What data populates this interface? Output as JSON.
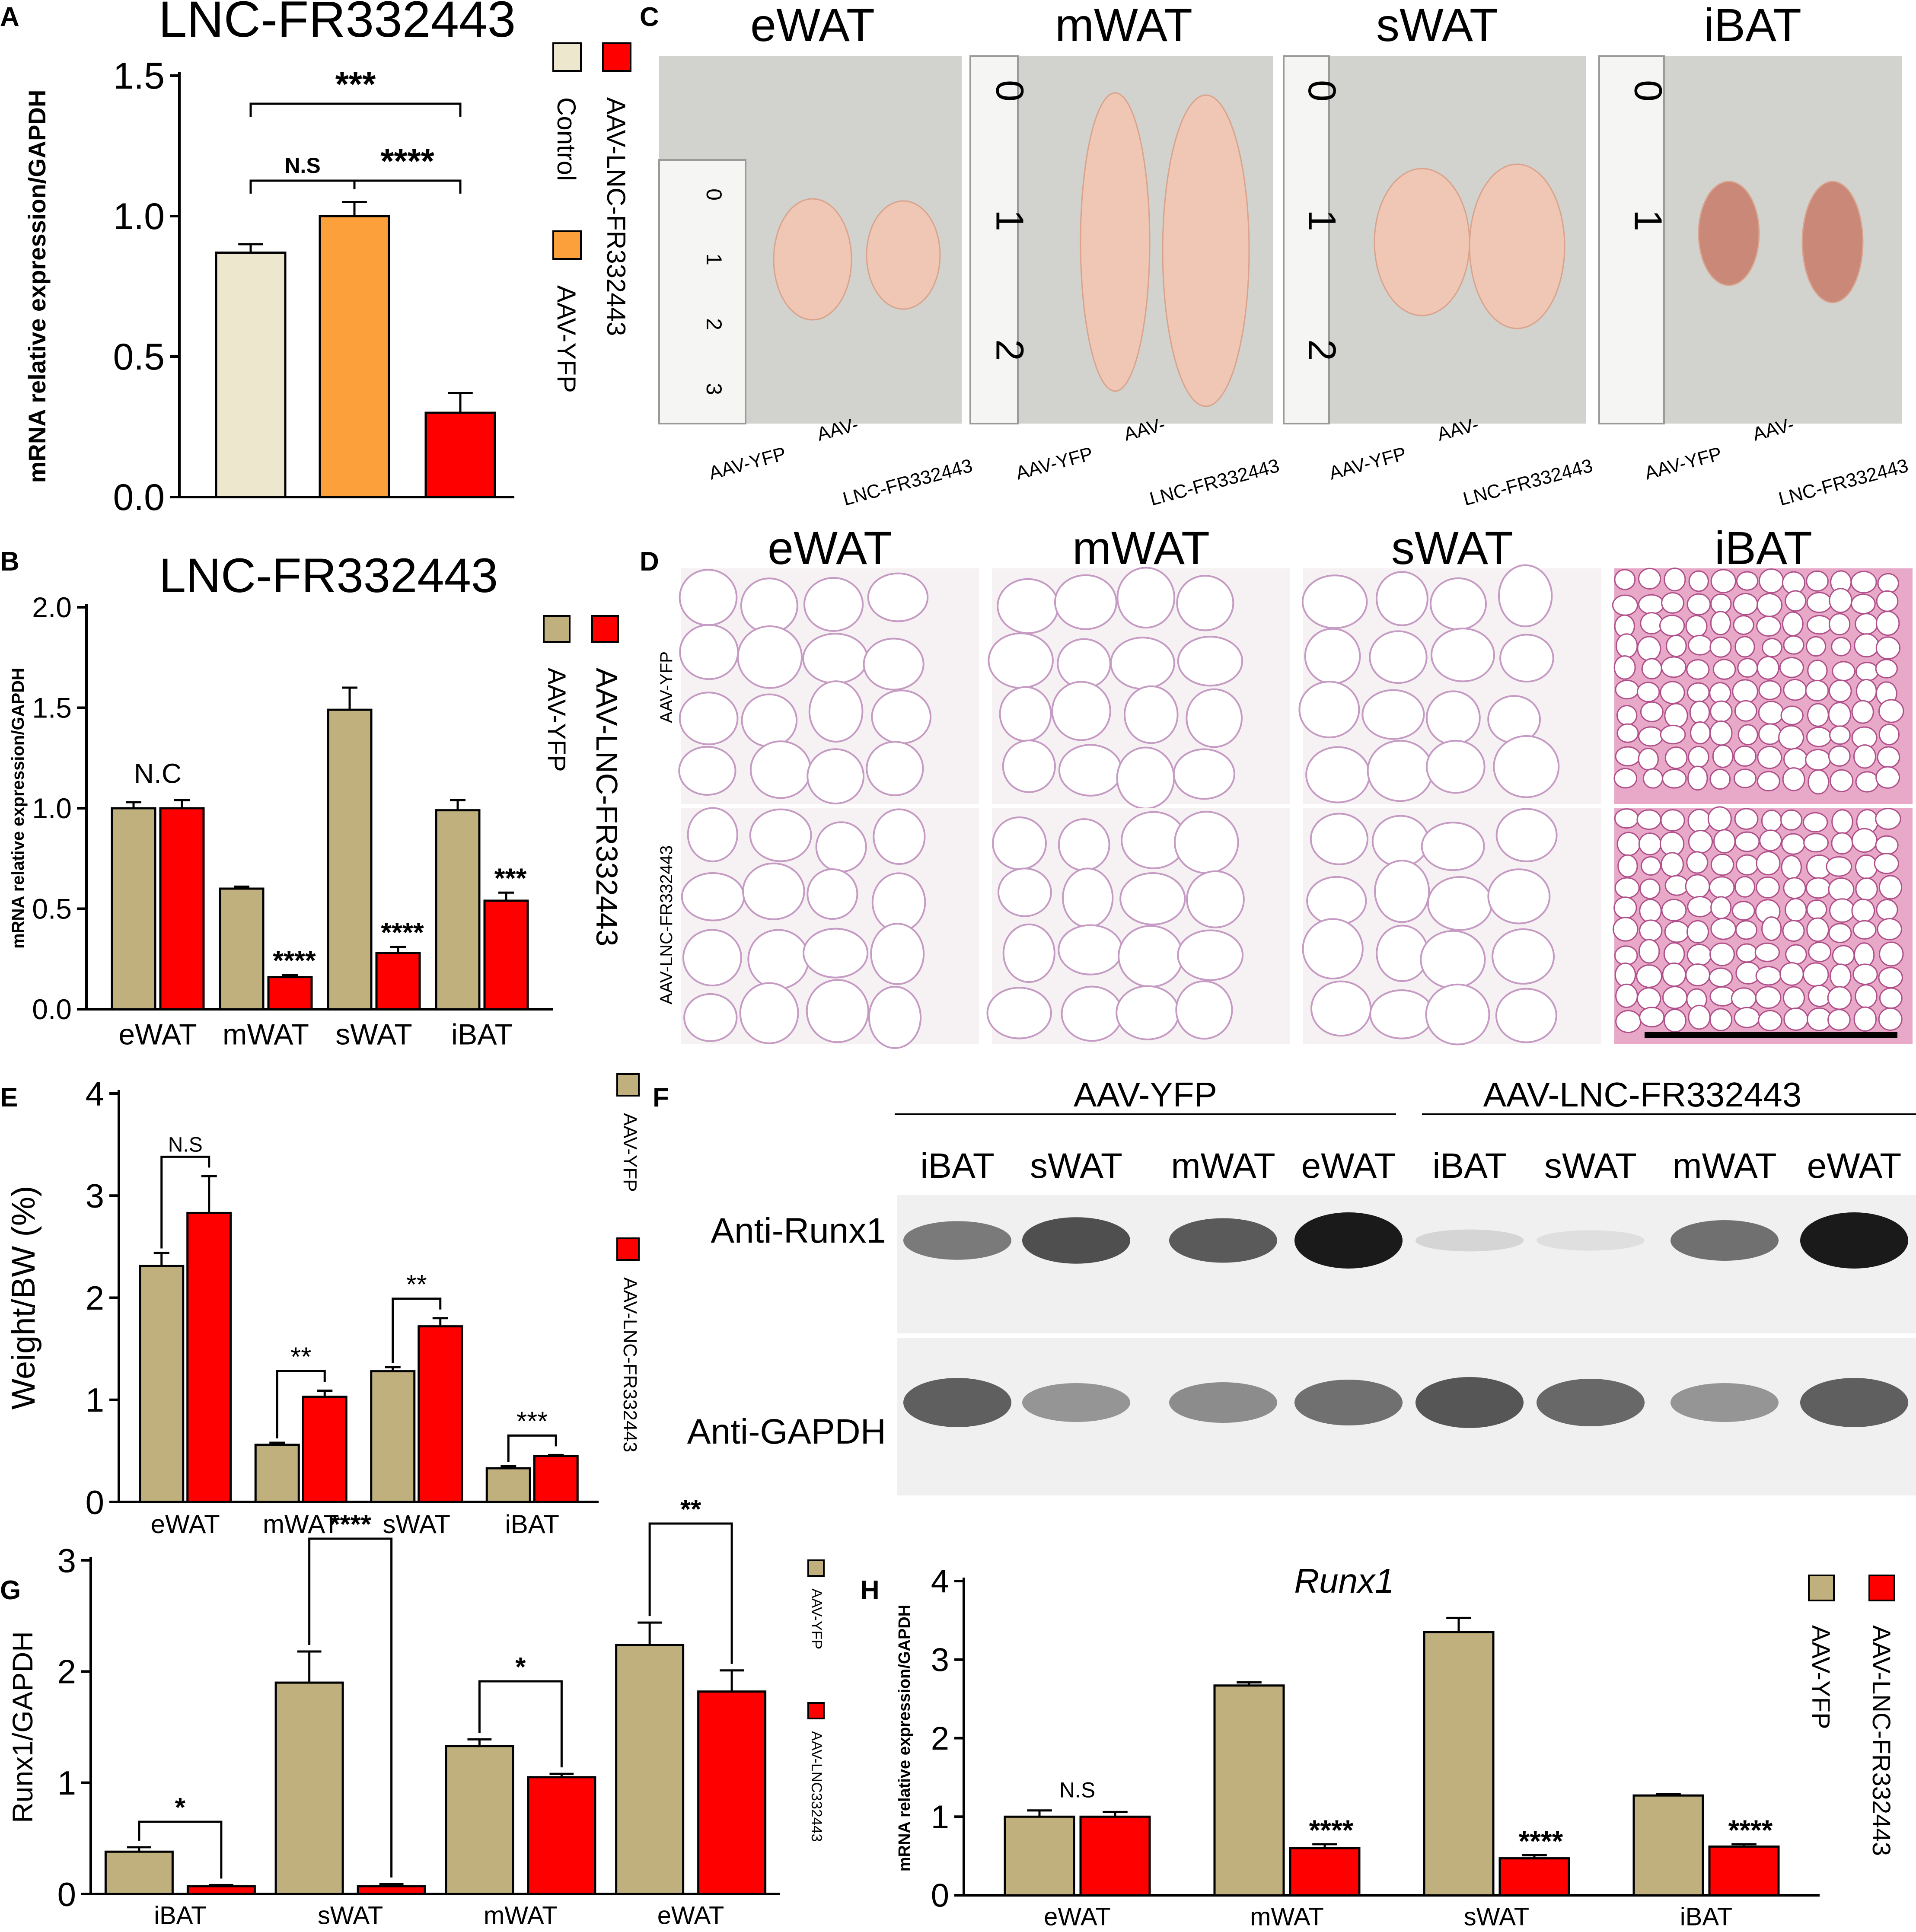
{
  "colors": {
    "control": "#EDE7CE",
    "orange": "#FBA03A",
    "red": "#FF0000",
    "khaki": "#BFB07E",
    "photo_bg": "#D2D2CE",
    "tissue": "#F0C7B4",
    "he_bg": "#F6F2F4",
    "he_line": "#C59AC3",
    "blot_bg": "#F0F0F0",
    "band": "#1A1A1A"
  },
  "panels": {
    "A": "A",
    "B": "B",
    "C": "C",
    "D": "D",
    "E": "E",
    "F": "F",
    "G": "G",
    "H": "H"
  },
  "chart_data": [
    {
      "id": "A",
      "type": "bar",
      "title": "LNC-FR332443",
      "ylabel": "mRNA relative expression/GAPDH",
      "ylim": [
        0,
        1.5
      ],
      "yticks": [
        "0.0",
        "0.5",
        "1.0",
        "1.5"
      ],
      "series": [
        {
          "name": "Control",
          "color": "#EDE7CE",
          "values": [
            0.87
          ],
          "errors": [
            0.03
          ]
        },
        {
          "name": "AAV-YFP",
          "color": "#FBA03A",
          "values": [
            1.0
          ],
          "errors": [
            0.05
          ]
        },
        {
          "name": "AAV-LNC-FR332443",
          "color": "#FF0000",
          "values": [
            0.3
          ],
          "errors": [
            0.07
          ]
        }
      ],
      "annotations": [
        {
          "text": "N.S",
          "from": 0,
          "to": 1
        },
        {
          "text": "****",
          "from": 1,
          "to": 2
        },
        {
          "text": "***",
          "from": 0,
          "to": 2
        }
      ]
    },
    {
      "id": "B",
      "type": "bar",
      "title": "LNC-FR332443",
      "ylabel": "mRNA relative expression/GAPDH",
      "ylim": [
        0,
        2.0
      ],
      "yticks": [
        "0.0",
        "0.5",
        "1.0",
        "1.5",
        "2.0"
      ],
      "categories": [
        "eWAT",
        "mWAT",
        "sWAT",
        "iBAT"
      ],
      "series": [
        {
          "name": "AAV-YFP",
          "color": "#BFB07E",
          "values": [
            1.0,
            0.6,
            1.49,
            0.99
          ],
          "errors": [
            0.03,
            0.01,
            0.11,
            0.05
          ]
        },
        {
          "name": "AAV-LNC-FR332443",
          "color": "#FF0000",
          "values": [
            1.0,
            0.16,
            0.28,
            0.54
          ],
          "errors": [
            0.04,
            0.01,
            0.03,
            0.04
          ]
        }
      ],
      "annotations": [
        "N.C",
        "****",
        "****",
        "***"
      ]
    },
    {
      "id": "E",
      "type": "bar",
      "ylabel": "Weight/BW (%)",
      "ylim": [
        0,
        4
      ],
      "yticks": [
        "0",
        "1",
        "2",
        "3",
        "4"
      ],
      "categories": [
        "eWAT",
        "mWAT",
        "sWAT",
        "iBAT"
      ],
      "series": [
        {
          "name": "AAV-YFP",
          "color": "#BFB07E",
          "values": [
            2.31,
            0.56,
            1.28,
            0.33
          ],
          "errors": [
            0.13,
            0.02,
            0.04,
            0.02
          ]
        },
        {
          "name": "AAV-LNC-FR332443",
          "color": "#FF0000",
          "values": [
            2.83,
            1.03,
            1.72,
            0.45
          ],
          "errors": [
            0.36,
            0.06,
            0.08,
            0.01
          ]
        }
      ],
      "annotations": [
        "N.S",
        "**",
        "**",
        "***"
      ]
    },
    {
      "id": "G",
      "type": "bar",
      "ylabel": "Runx1/GAPDH",
      "ylim": [
        0,
        3
      ],
      "yticks": [
        "0",
        "1",
        "2",
        "3"
      ],
      "categories": [
        "iBAT",
        "sWAT",
        "mWAT",
        "eWAT"
      ],
      "series": [
        {
          "name": "AAV-YFP",
          "color": "#BFB07E",
          "values": [
            0.38,
            1.9,
            1.33,
            2.24
          ],
          "errors": [
            0.04,
            0.28,
            0.06,
            0.2
          ]
        },
        {
          "name": "AAV-LNC332443",
          "color": "#FF0000",
          "values": [
            0.07,
            0.07,
            1.05,
            1.82
          ],
          "errors": [
            0.01,
            0.02,
            0.03,
            0.19
          ]
        }
      ],
      "annotations": [
        "*",
        "****",
        "*",
        "**"
      ]
    },
    {
      "id": "H",
      "type": "bar",
      "title": "Runx1",
      "ylabel": "mRNA relative expression/GAPDH",
      "ylim": [
        0,
        4
      ],
      "yticks": [
        "0",
        "1",
        "2",
        "3",
        "4"
      ],
      "categories": [
        "eWAT",
        "mWAT",
        "sWAT",
        "iBAT"
      ],
      "series": [
        {
          "name": "AAV-YFP",
          "color": "#BFB07E",
          "values": [
            1.0,
            2.67,
            3.35,
            1.27
          ],
          "errors": [
            0.08,
            0.04,
            0.18,
            0.02
          ]
        },
        {
          "name": "AAV-LNC-FR332443",
          "color": "#FF0000",
          "values": [
            1.0,
            0.6,
            0.47,
            0.62
          ],
          "errors": [
            0.06,
            0.05,
            0.04,
            0.03
          ]
        }
      ],
      "annotations": [
        "N.S",
        "****",
        "****",
        "****"
      ]
    }
  ],
  "photos": {
    "tissues": [
      "eWAT",
      "mWAT",
      "sWAT",
      "iBAT"
    ],
    "label_yfp": "AAV-YFP",
    "label_lnc_1": "AAV-",
    "label_lnc_2": "LNC-FR332443",
    "ruler_marks": [
      "0",
      "1",
      "2",
      "3"
    ]
  },
  "histology": {
    "tissues": [
      "eWAT",
      "mWAT",
      "sWAT",
      "iBAT"
    ],
    "rows": [
      "AAV-YFP",
      "AAV-LNC-FR332443"
    ]
  },
  "western": {
    "group_yfp": "AAV-YFP",
    "group_lnc": "AAV-LNC-FR332443",
    "lanes": [
      "iBAT",
      "sWAT",
      "mWAT",
      "eWAT",
      "iBAT",
      "sWAT",
      "mWAT",
      "eWAT"
    ],
    "row_runx1": "Anti-Runx1",
    "row_gapdh": "Anti-GAPDH",
    "runx1_intensity": [
      0.55,
      0.75,
      0.7,
      1.0,
      0.12,
      0.08,
      0.6,
      1.0
    ],
    "gapdh_intensity": [
      0.8,
      0.5,
      0.55,
      0.7,
      0.85,
      0.75,
      0.5,
      0.8
    ]
  }
}
